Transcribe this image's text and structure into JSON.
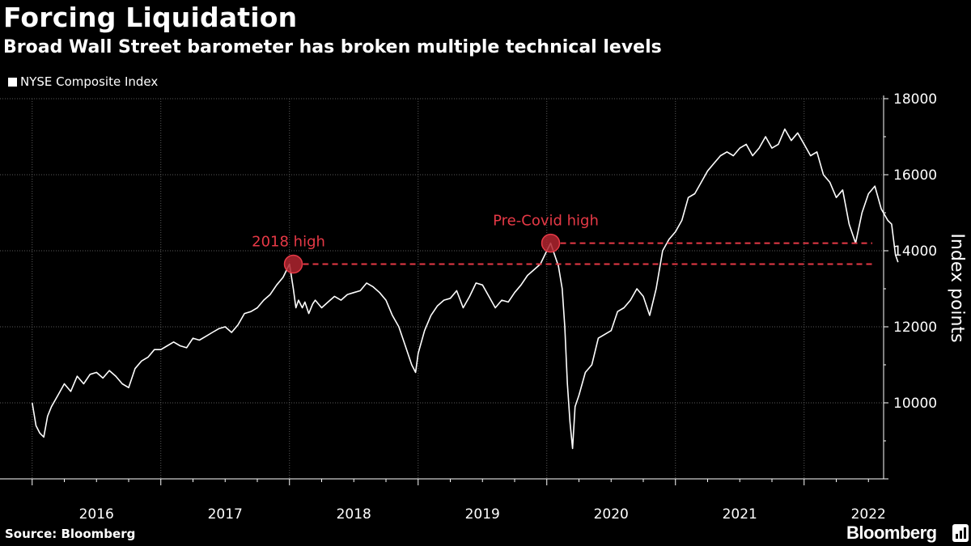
{
  "chart_data": {
    "type": "line",
    "title": "Forcing Liquidation",
    "subtitle": "Broad Wall Street barometer has broken multiple technical levels",
    "legend": [
      "NYSE Composite Index"
    ],
    "ylabel": "Index points",
    "ylim": [
      8000,
      18000
    ],
    "yticks": [
      10000,
      12000,
      14000,
      16000,
      18000
    ],
    "ytick_labels": [
      "10000",
      "12000",
      "14000",
      "16000",
      "18000"
    ],
    "xlim": [
      2016.0,
      2022.75
    ],
    "years": [
      "2016",
      "2017",
      "2018",
      "2019",
      "2020",
      "2021",
      "2022"
    ],
    "grid": true,
    "series": [
      {
        "name": "NYSE Composite Index",
        "color": "#ffffff",
        "x": [
          2016.0,
          2016.03,
          2016.06,
          2016.09,
          2016.12,
          2016.15,
          2016.2,
          2016.25,
          2016.3,
          2016.35,
          2016.4,
          2016.45,
          2016.5,
          2016.55,
          2016.6,
          2016.65,
          2016.7,
          2016.75,
          2016.8,
          2016.85,
          2016.9,
          2016.95,
          2017.0,
          2017.05,
          2017.1,
          2017.15,
          2017.2,
          2017.25,
          2017.3,
          2017.35,
          2017.4,
          2017.45,
          2017.5,
          2017.55,
          2017.6,
          2017.65,
          2017.7,
          2017.75,
          2017.8,
          2017.85,
          2017.9,
          2017.95,
          2018.0,
          2018.03,
          2018.05,
          2018.07,
          2018.1,
          2018.12,
          2018.15,
          2018.18,
          2018.2,
          2018.25,
          2018.3,
          2018.35,
          2018.4,
          2018.45,
          2018.5,
          2018.55,
          2018.6,
          2018.65,
          2018.7,
          2018.75,
          2018.8,
          2018.85,
          2018.9,
          2018.95,
          2018.98,
          2019.0,
          2019.05,
          2019.1,
          2019.15,
          2019.2,
          2019.25,
          2019.3,
          2019.35,
          2019.4,
          2019.45,
          2019.5,
          2019.55,
          2019.6,
          2019.65,
          2019.7,
          2019.75,
          2019.8,
          2019.85,
          2019.9,
          2019.95,
          2020.0,
          2020.03,
          2020.06,
          2020.09,
          2020.12,
          2020.14,
          2020.16,
          2020.18,
          2020.2,
          2020.22,
          2020.25,
          2020.3,
          2020.35,
          2020.4,
          2020.45,
          2020.5,
          2020.55,
          2020.6,
          2020.65,
          2020.7,
          2020.75,
          2020.8,
          2020.85,
          2020.9,
          2020.95,
          2021.0,
          2021.05,
          2021.1,
          2021.15,
          2021.2,
          2021.25,
          2021.3,
          2021.35,
          2021.4,
          2021.45,
          2021.5,
          2021.55,
          2021.6,
          2021.65,
          2021.7,
          2021.75,
          2021.8,
          2021.85,
          2021.9,
          2021.95,
          2022.0,
          2022.05,
          2022.1,
          2022.15,
          2022.2,
          2022.25,
          2022.3,
          2022.35,
          2022.4,
          2022.45,
          2022.5,
          2022.55,
          2022.6,
          2022.65,
          2022.68,
          2022.71,
          2022.73
        ],
        "values": [
          10000,
          9400,
          9200,
          9100,
          9650,
          9900,
          10200,
          10500,
          10300,
          10700,
          10500,
          10750,
          10800,
          10650,
          10850,
          10700,
          10500,
          10400,
          10900,
          11100,
          11200,
          11400,
          11400,
          11500,
          11600,
          11500,
          11450,
          11700,
          11650,
          11750,
          11850,
          11950,
          12000,
          11850,
          12050,
          12350,
          12400,
          12500,
          12700,
          12850,
          13100,
          13300,
          13650,
          13000,
          12500,
          12700,
          12500,
          12650,
          12350,
          12600,
          12700,
          12500,
          12650,
          12800,
          12700,
          12850,
          12900,
          12950,
          13150,
          13050,
          12900,
          12700,
          12300,
          12000,
          11500,
          11000,
          10800,
          11300,
          11900,
          12300,
          12550,
          12700,
          12750,
          12950,
          12500,
          12800,
          13150,
          13100,
          12800,
          12500,
          12700,
          12650,
          12900,
          13100,
          13350,
          13500,
          13650,
          14000,
          14200,
          13900,
          13600,
          13000,
          12000,
          10500,
          9500,
          8800,
          9900,
          10200,
          10800,
          11000,
          11700,
          11800,
          11900,
          12400,
          12500,
          12700,
          13000,
          12800,
          12300,
          13000,
          14000,
          14300,
          14500,
          14800,
          15400,
          15500,
          15800,
          16100,
          16300,
          16500,
          16600,
          16500,
          16700,
          16800,
          16500,
          16700,
          17000,
          16700,
          16800,
          17200,
          16900,
          17100,
          16800,
          16500,
          16600,
          16000,
          15800,
          15400,
          15600,
          14700,
          14200,
          15000,
          15500,
          15700,
          15100,
          14800,
          14700,
          13900,
          13700
        ]
      }
    ],
    "annotations": [
      {
        "label": "2018 high",
        "x": 2018.03,
        "value": 13650,
        "color": "#e63946"
      },
      {
        "label": "Pre-Covid high",
        "x": 2020.03,
        "value": 14200,
        "color": "#e63946"
      }
    ]
  },
  "source": "Source: Bloomberg",
  "brand": "Bloomberg"
}
